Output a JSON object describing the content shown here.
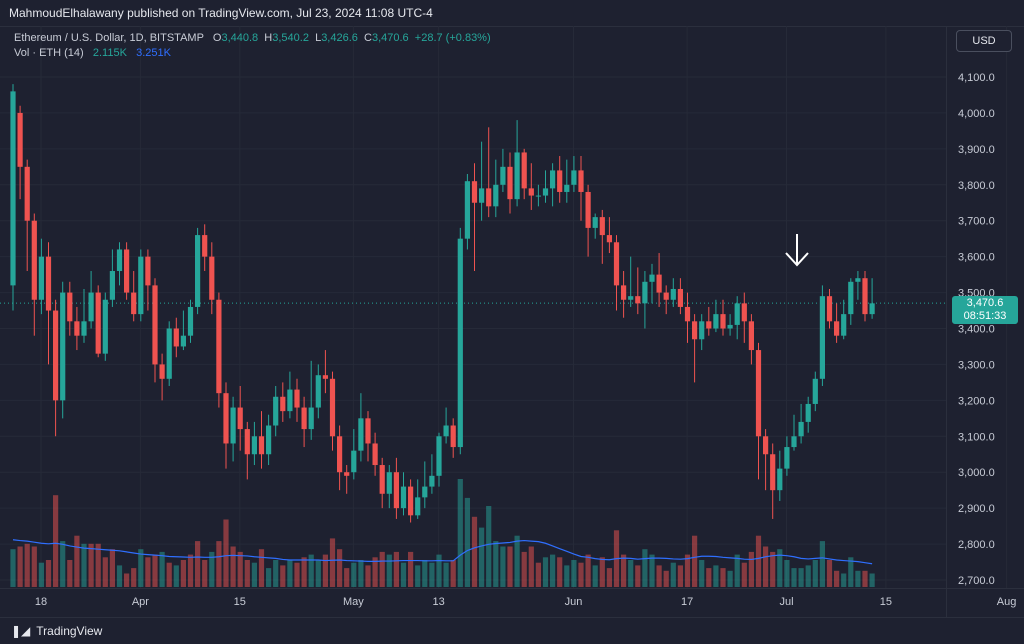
{
  "header": {
    "publisher_text": "MahmoudElhalawany published on TradingView.com, Jul 23, 2024 11:08 UTC-4"
  },
  "legend": {
    "symbol": "Ethereum / U.S. Dollar, 1D, BITSTAMP",
    "o_label": "O",
    "o_value": "3,440.8",
    "h_label": "H",
    "h_value": "3,540.2",
    "l_label": "L",
    "l_value": "3,426.6",
    "c_label": "C",
    "c_value": "3,470.6",
    "change": "+28.7 (+0.83%)",
    "vol_label": "Vol · ETH (14)",
    "vol_value": "2.115K",
    "vol_ma_value": "3.251K"
  },
  "currency_button": "USD",
  "price_tag": {
    "price": "3,470.6",
    "countdown": "08:51:33"
  },
  "footer": {
    "brand": "TradingView"
  },
  "colors": {
    "up": "#26a69a",
    "down": "#ef5350",
    "volume_ma": "#2f6fff",
    "background": "#1e2130"
  },
  "chart_data": {
    "type": "candlestick",
    "y_axis_ticks": [
      "4,100.0",
      "4,000.0",
      "3,900.0",
      "3,800.0",
      "3,700.0",
      "3,600.0",
      "3,500.0",
      "3,400.0",
      "3,300.0",
      "3,200.0",
      "3,100.0",
      "3,000.0",
      "2,900.0",
      "2,800.0",
      "2,700.0"
    ],
    "y_axis_values": [
      4100,
      4000,
      3900,
      3800,
      3700,
      3600,
      3500,
      3400,
      3300,
      3200,
      3100,
      3000,
      2900,
      2800,
      2700
    ],
    "ylim": [
      2680,
      4150
    ],
    "x_axis_labels": [
      "18",
      "Apr",
      "15",
      "May",
      "13",
      "Jun",
      "17",
      "Jul",
      "15",
      "Aug"
    ],
    "x_axis_label_days": [
      0,
      14,
      28,
      44,
      56,
      75,
      91,
      105,
      119,
      136
    ],
    "current_price": 3470.6,
    "annotation": "down-arrow",
    "candles": [
      [
        3520,
        4060,
        4080,
        3450
      ],
      [
        4000,
        3850,
        4020,
        3760
      ],
      [
        3850,
        3700,
        3870,
        3560
      ],
      [
        3700,
        3480,
        3720,
        3380
      ],
      [
        3480,
        3600,
        3650,
        3440
      ],
      [
        3600,
        3450,
        3640,
        3300
      ],
      [
        3450,
        3200,
        3480,
        3100
      ],
      [
        3200,
        3500,
        3530,
        3150
      ],
      [
        3500,
        3420,
        3530,
        3380
      ],
      [
        3420,
        3380,
        3460,
        3340
      ],
      [
        3380,
        3420,
        3510,
        3360
      ],
      [
        3420,
        3500,
        3560,
        3400
      ],
      [
        3500,
        3330,
        3520,
        3320
      ],
      [
        3330,
        3480,
        3500,
        3310
      ],
      [
        3480,
        3560,
        3620,
        3460
      ],
      [
        3560,
        3620,
        3640,
        3520
      ],
      [
        3620,
        3500,
        3640,
        3480
      ],
      [
        3500,
        3440,
        3560,
        3420
      ],
      [
        3440,
        3600,
        3620,
        3420
      ],
      [
        3600,
        3520,
        3620,
        3450
      ],
      [
        3520,
        3300,
        3540,
        3250
      ],
      [
        3300,
        3260,
        3330,
        3200
      ],
      [
        3260,
        3400,
        3420,
        3240
      ],
      [
        3400,
        3350,
        3430,
        3320
      ],
      [
        3350,
        3380,
        3450,
        3340
      ],
      [
        3380,
        3460,
        3480,
        3360
      ],
      [
        3460,
        3660,
        3680,
        3440
      ],
      [
        3660,
        3600,
        3690,
        3560
      ],
      [
        3600,
        3480,
        3640,
        3440
      ],
      [
        3480,
        3220,
        3500,
        3180
      ],
      [
        3220,
        3080,
        3250,
        3010
      ],
      [
        3080,
        3180,
        3210,
        3030
      ],
      [
        3180,
        3120,
        3240,
        3060
      ],
      [
        3120,
        3050,
        3140,
        2980
      ],
      [
        3050,
        3100,
        3140,
        3020
      ],
      [
        3100,
        3050,
        3170,
        3010
      ],
      [
        3050,
        3130,
        3160,
        3020
      ],
      [
        3130,
        3210,
        3240,
        3100
      ],
      [
        3210,
        3170,
        3250,
        3140
      ],
      [
        3170,
        3230,
        3280,
        3150
      ],
      [
        3230,
        3180,
        3260,
        3140
      ],
      [
        3180,
        3120,
        3210,
        3070
      ],
      [
        3120,
        3180,
        3310,
        3090
      ],
      [
        3180,
        3270,
        3300,
        3150
      ],
      [
        3270,
        3260,
        3340,
        3220
      ],
      [
        3260,
        3100,
        3280,
        3060
      ],
      [
        3100,
        3000,
        3130,
        2950
      ],
      [
        3000,
        2990,
        3020,
        2940
      ],
      [
        3000,
        3060,
        3120,
        2980
      ],
      [
        3060,
        3150,
        3220,
        3030
      ],
      [
        3150,
        3080,
        3170,
        3030
      ],
      [
        3080,
        3020,
        3110,
        2990
      ],
      [
        3020,
        2940,
        3040,
        2900
      ],
      [
        2940,
        3000,
        3020,
        2900
      ],
      [
        3000,
        2900,
        3040,
        2870
      ],
      [
        2900,
        2960,
        3000,
        2880
      ],
      [
        2960,
        2880,
        2980,
        2860
      ],
      [
        2880,
        2930,
        2980,
        2870
      ],
      [
        2930,
        2960,
        3030,
        2900
      ],
      [
        2960,
        2990,
        3050,
        2940
      ],
      [
        2990,
        3100,
        3110,
        2960
      ],
      [
        3100,
        3130,
        3180,
        3080
      ],
      [
        3130,
        3070,
        3150,
        3040
      ],
      [
        3070,
        3650,
        3680,
        3050
      ],
      [
        3650,
        3810,
        3830,
        3620
      ],
      [
        3810,
        3750,
        3860,
        3560
      ],
      [
        3750,
        3790,
        3920,
        3700
      ],
      [
        3790,
        3740,
        3960,
        3710
      ],
      [
        3740,
        3800,
        3870,
        3710
      ],
      [
        3800,
        3850,
        3900,
        3780
      ],
      [
        3850,
        3760,
        3890,
        3720
      ],
      [
        3760,
        3890,
        3980,
        3740
      ],
      [
        3890,
        3790,
        3900,
        3760
      ],
      [
        3790,
        3770,
        3860,
        3730
      ],
      [
        3770,
        3770,
        3800,
        3740
      ],
      [
        3770,
        3790,
        3840,
        3750
      ],
      [
        3790,
        3840,
        3860,
        3740
      ],
      [
        3840,
        3780,
        3880,
        3750
      ],
      [
        3780,
        3800,
        3870,
        3750
      ],
      [
        3800,
        3840,
        3880,
        3780
      ],
      [
        3840,
        3780,
        3880,
        3700
      ],
      [
        3780,
        3680,
        3800,
        3600
      ],
      [
        3680,
        3710,
        3720,
        3650
      ],
      [
        3710,
        3660,
        3730,
        3580
      ],
      [
        3660,
        3640,
        3710,
        3610
      ],
      [
        3640,
        3520,
        3660,
        3450
      ],
      [
        3520,
        3480,
        3560,
        3430
      ],
      [
        3480,
        3490,
        3600,
        3460
      ],
      [
        3490,
        3470,
        3570,
        3440
      ],
      [
        3470,
        3530,
        3560,
        3400
      ],
      [
        3530,
        3550,
        3580,
        3470
      ],
      [
        3550,
        3500,
        3610,
        3460
      ],
      [
        3500,
        3480,
        3520,
        3440
      ],
      [
        3480,
        3510,
        3540,
        3460
      ],
      [
        3510,
        3460,
        3540,
        3440
      ],
      [
        3460,
        3420,
        3500,
        3360
      ],
      [
        3420,
        3370,
        3440,
        3250
      ],
      [
        3370,
        3420,
        3440,
        3340
      ],
      [
        3420,
        3400,
        3460,
        3380
      ],
      [
        3400,
        3440,
        3480,
        3390
      ],
      [
        3440,
        3400,
        3480,
        3380
      ],
      [
        3400,
        3410,
        3440,
        3380
      ],
      [
        3410,
        3470,
        3490,
        3370
      ],
      [
        3470,
        3420,
        3500,
        3360
      ],
      [
        3420,
        3340,
        3440,
        3300
      ],
      [
        3340,
        3100,
        3360,
        2980
      ],
      [
        3100,
        3050,
        3120,
        2950
      ],
      [
        3050,
        2950,
        3080,
        2870
      ],
      [
        2950,
        3010,
        3060,
        2920
      ],
      [
        3010,
        3070,
        3100,
        2990
      ],
      [
        3070,
        3100,
        3160,
        3060
      ],
      [
        3100,
        3140,
        3190,
        3080
      ],
      [
        3140,
        3190,
        3210,
        3110
      ],
      [
        3190,
        3260,
        3280,
        3170
      ],
      [
        3260,
        3490,
        3520,
        3240
      ],
      [
        3490,
        3420,
        3510,
        3400
      ],
      [
        3420,
        3380,
        3470,
        3360
      ],
      [
        3380,
        3440,
        3480,
        3370
      ],
      [
        3440,
        3530,
        3540,
        3410
      ],
      [
        3530,
        3540,
        3560,
        3480
      ],
      [
        3540,
        3440,
        3560,
        3420
      ],
      [
        3440,
        3470,
        3540,
        3427
      ]
    ],
    "volumes": [
      [
        1.4,
        "up"
      ],
      [
        1.5,
        "down"
      ],
      [
        1.6,
        "down"
      ],
      [
        1.5,
        "down"
      ],
      [
        0.9,
        "up"
      ],
      [
        1.0,
        "down"
      ],
      [
        3.4,
        "down"
      ],
      [
        1.7,
        "up"
      ],
      [
        1.0,
        "down"
      ],
      [
        1.9,
        "down"
      ],
      [
        1.6,
        "up"
      ],
      [
        1.6,
        "down"
      ],
      [
        1.6,
        "down"
      ],
      [
        1.1,
        "down"
      ],
      [
        1.4,
        "down"
      ],
      [
        0.8,
        "up"
      ],
      [
        0.5,
        "down"
      ],
      [
        0.7,
        "down"
      ],
      [
        1.4,
        "up"
      ],
      [
        1.1,
        "down"
      ],
      [
        1.2,
        "down"
      ],
      [
        1.3,
        "up"
      ],
      [
        0.9,
        "down"
      ],
      [
        0.8,
        "up"
      ],
      [
        1.0,
        "down"
      ],
      [
        1.2,
        "down"
      ],
      [
        1.7,
        "down"
      ],
      [
        1.0,
        "down"
      ],
      [
        1.3,
        "up"
      ],
      [
        1.7,
        "down"
      ],
      [
        2.5,
        "down"
      ],
      [
        1.5,
        "down"
      ],
      [
        1.3,
        "down"
      ],
      [
        1.0,
        "down"
      ],
      [
        0.9,
        "up"
      ],
      [
        1.4,
        "down"
      ],
      [
        0.7,
        "up"
      ],
      [
        1.0,
        "up"
      ],
      [
        0.8,
        "down"
      ],
      [
        1.0,
        "up"
      ],
      [
        0.9,
        "down"
      ],
      [
        1.1,
        "down"
      ],
      [
        1.2,
        "up"
      ],
      [
        1.0,
        "up"
      ],
      [
        1.2,
        "down"
      ],
      [
        1.8,
        "down"
      ],
      [
        1.4,
        "down"
      ],
      [
        0.7,
        "down"
      ],
      [
        0.9,
        "up"
      ],
      [
        1.0,
        "up"
      ],
      [
        0.8,
        "down"
      ],
      [
        1.1,
        "down"
      ],
      [
        1.3,
        "down"
      ],
      [
        1.2,
        "up"
      ],
      [
        1.3,
        "down"
      ],
      [
        0.9,
        "up"
      ],
      [
        1.3,
        "down"
      ],
      [
        0.8,
        "up"
      ],
      [
        1.0,
        "up"
      ],
      [
        0.9,
        "up"
      ],
      [
        1.2,
        "up"
      ],
      [
        0.9,
        "up"
      ],
      [
        1.0,
        "down"
      ],
      [
        4.0,
        "up"
      ],
      [
        3.3,
        "up"
      ],
      [
        2.6,
        "down"
      ],
      [
        2.2,
        "up"
      ],
      [
        3.0,
        "up"
      ],
      [
        1.7,
        "up"
      ],
      [
        1.5,
        "up"
      ],
      [
        1.5,
        "down"
      ],
      [
        1.9,
        "up"
      ],
      [
        1.3,
        "down"
      ],
      [
        1.5,
        "down"
      ],
      [
        0.9,
        "down"
      ],
      [
        1.1,
        "up"
      ],
      [
        1.2,
        "up"
      ],
      [
        1.1,
        "down"
      ],
      [
        0.8,
        "up"
      ],
      [
        1.0,
        "up"
      ],
      [
        0.9,
        "down"
      ],
      [
        1.2,
        "down"
      ],
      [
        0.8,
        "up"
      ],
      [
        1.1,
        "down"
      ],
      [
        0.7,
        "down"
      ],
      [
        2.1,
        "down"
      ],
      [
        1.2,
        "down"
      ],
      [
        1.0,
        "up"
      ],
      [
        0.8,
        "down"
      ],
      [
        1.4,
        "up"
      ],
      [
        1.2,
        "up"
      ],
      [
        0.8,
        "down"
      ],
      [
        0.6,
        "down"
      ],
      [
        0.9,
        "up"
      ],
      [
        0.8,
        "down"
      ],
      [
        1.2,
        "down"
      ],
      [
        1.9,
        "down"
      ],
      [
        1.0,
        "up"
      ],
      [
        0.7,
        "down"
      ],
      [
        0.8,
        "up"
      ],
      [
        0.7,
        "down"
      ],
      [
        0.6,
        "up"
      ],
      [
        1.2,
        "up"
      ],
      [
        0.9,
        "down"
      ],
      [
        1.3,
        "down"
      ],
      [
        1.9,
        "down"
      ],
      [
        1.5,
        "down"
      ],
      [
        1.3,
        "down"
      ],
      [
        1.4,
        "up"
      ],
      [
        1.0,
        "up"
      ],
      [
        0.7,
        "up"
      ],
      [
        0.7,
        "up"
      ],
      [
        0.8,
        "up"
      ],
      [
        1.0,
        "up"
      ],
      [
        1.7,
        "up"
      ],
      [
        1.0,
        "down"
      ],
      [
        0.6,
        "down"
      ],
      [
        0.5,
        "up"
      ],
      [
        1.1,
        "up"
      ],
      [
        0.6,
        "up"
      ],
      [
        0.6,
        "down"
      ],
      [
        0.5,
        "up"
      ]
    ],
    "volume_ma": [
      1.75,
      1.72,
      1.7,
      1.66,
      1.62,
      1.6,
      1.62,
      1.58,
      1.52,
      1.48,
      1.44,
      1.42,
      1.4,
      1.38,
      1.36,
      1.34,
      1.3,
      1.26,
      1.22,
      1.2,
      1.18,
      1.16,
      1.13,
      1.12,
      1.11,
      1.1,
      1.11,
      1.1,
      1.1,
      1.12,
      1.16,
      1.17,
      1.16,
      1.15,
      1.12,
      1.1,
      1.08,
      1.06,
      1.02,
      1.0,
      1.0,
      1.0,
      1.0,
      1.0,
      0.98,
      0.99,
      1.0,
      0.98,
      0.97,
      0.96,
      0.95,
      0.95,
      0.96,
      0.96,
      0.97,
      0.98,
      0.98,
      0.98,
      0.97,
      0.97,
      0.98,
      0.97,
      0.97,
      1.18,
      1.35,
      1.45,
      1.52,
      1.58,
      1.61,
      1.63,
      1.65,
      1.7,
      1.72,
      1.7,
      1.68,
      1.62,
      1.52,
      1.42,
      1.32,
      1.22,
      1.13,
      1.1,
      1.05,
      1.02,
      1.01,
      1.05,
      1.07,
      1.06,
      1.03,
      1.05,
      1.07,
      1.07,
      1.06,
      1.04,
      1.03,
      1.05,
      1.1,
      1.14,
      1.14,
      1.13,
      1.1,
      1.08,
      1.06,
      1.03,
      1.02,
      1.06,
      1.12,
      1.16,
      1.18,
      1.16,
      1.12,
      1.06,
      1.04,
      1.06,
      1.08,
      1.04,
      1.0,
      0.98,
      0.96,
      0.94,
      0.9,
      0.86
    ]
  }
}
